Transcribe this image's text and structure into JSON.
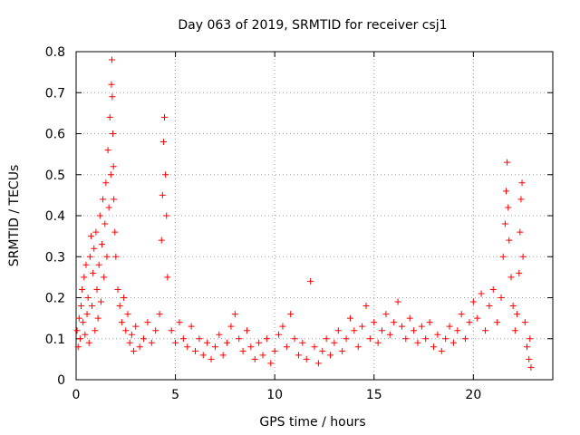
{
  "chart_data": {
    "type": "scatter",
    "title": "Day 063 of 2019, SRMTID for receiver csj1",
    "xlabel": "GPS time / hours",
    "ylabel": "SRMTID / TECUs",
    "xlim": [
      0,
      24
    ],
    "ylim": [
      0,
      0.8
    ],
    "xticks": [
      0,
      5,
      10,
      15,
      20
    ],
    "xtick_labels": [
      "0",
      "5",
      "10",
      "15",
      "20"
    ],
    "yticks": [
      0,
      0.1,
      0.2,
      0.3,
      0.4,
      0.5,
      0.6,
      0.7,
      0.8
    ],
    "ytick_labels": [
      "0",
      "0.1",
      "0.2",
      "0.3",
      "0.4",
      "0.5",
      "0.6",
      "0.7",
      "0.8"
    ],
    "grid": true,
    "marker": "+",
    "marker_color": "#ff0000",
    "series": [
      {
        "name": "csj1",
        "points": [
          [
            0.05,
            0.12
          ],
          [
            0.1,
            0.08
          ],
          [
            0.15,
            0.15
          ],
          [
            0.2,
            0.1
          ],
          [
            0.25,
            0.18
          ],
          [
            0.3,
            0.22
          ],
          [
            0.35,
            0.14
          ],
          [
            0.4,
            0.25
          ],
          [
            0.45,
            0.11
          ],
          [
            0.5,
            0.28
          ],
          [
            0.55,
            0.16
          ],
          [
            0.6,
            0.2
          ],
          [
            0.65,
            0.09
          ],
          [
            0.7,
            0.3
          ],
          [
            0.75,
            0.35
          ],
          [
            0.8,
            0.18
          ],
          [
            0.85,
            0.26
          ],
          [
            0.9,
            0.32
          ],
          [
            0.95,
            0.12
          ],
          [
            1.0,
            0.36
          ],
          [
            1.05,
            0.22
          ],
          [
            1.1,
            0.15
          ],
          [
            1.15,
            0.28
          ],
          [
            1.2,
            0.4
          ],
          [
            1.25,
            0.19
          ],
          [
            1.3,
            0.33
          ],
          [
            1.35,
            0.44
          ],
          [
            1.4,
            0.25
          ],
          [
            1.45,
            0.38
          ],
          [
            1.5,
            0.48
          ],
          [
            1.55,
            0.3
          ],
          [
            1.6,
            0.56
          ],
          [
            1.65,
            0.42
          ],
          [
            1.7,
            0.64
          ],
          [
            1.75,
            0.5
          ],
          [
            1.78,
            0.72
          ],
          [
            1.8,
            0.78
          ],
          [
            1.82,
            0.69
          ],
          [
            1.85,
            0.6
          ],
          [
            1.88,
            0.52
          ],
          [
            1.9,
            0.44
          ],
          [
            1.95,
            0.36
          ],
          [
            2.0,
            0.3
          ],
          [
            2.1,
            0.22
          ],
          [
            2.2,
            0.18
          ],
          [
            2.3,
            0.14
          ],
          [
            2.4,
            0.2
          ],
          [
            2.5,
            0.12
          ],
          [
            2.6,
            0.16
          ],
          [
            2.7,
            0.09
          ],
          [
            2.8,
            0.11
          ],
          [
            2.9,
            0.07
          ],
          [
            3.0,
            0.13
          ],
          [
            3.2,
            0.08
          ],
          [
            3.4,
            0.1
          ],
          [
            3.6,
            0.14
          ],
          [
            3.8,
            0.09
          ],
          [
            4.0,
            0.12
          ],
          [
            4.2,
            0.16
          ],
          [
            4.3,
            0.34
          ],
          [
            4.35,
            0.45
          ],
          [
            4.4,
            0.58
          ],
          [
            4.45,
            0.64
          ],
          [
            4.5,
            0.5
          ],
          [
            4.55,
            0.4
          ],
          [
            4.6,
            0.25
          ],
          [
            4.8,
            0.12
          ],
          [
            5.0,
            0.09
          ],
          [
            5.2,
            0.14
          ],
          [
            5.4,
            0.1
          ],
          [
            5.6,
            0.08
          ],
          [
            5.8,
            0.13
          ],
          [
            6.0,
            0.07
          ],
          [
            6.2,
            0.1
          ],
          [
            6.4,
            0.06
          ],
          [
            6.6,
            0.09
          ],
          [
            6.8,
            0.05
          ],
          [
            7.0,
            0.08
          ],
          [
            7.2,
            0.11
          ],
          [
            7.4,
            0.06
          ],
          [
            7.6,
            0.09
          ],
          [
            7.8,
            0.13
          ],
          [
            8.0,
            0.16
          ],
          [
            8.2,
            0.1
          ],
          [
            8.4,
            0.07
          ],
          [
            8.6,
            0.12
          ],
          [
            8.8,
            0.08
          ],
          [
            9.0,
            0.05
          ],
          [
            9.2,
            0.09
          ],
          [
            9.4,
            0.06
          ],
          [
            9.6,
            0.1
          ],
          [
            9.8,
            0.04
          ],
          [
            10.0,
            0.07
          ],
          [
            10.2,
            0.11
          ],
          [
            10.4,
            0.13
          ],
          [
            10.6,
            0.08
          ],
          [
            10.8,
            0.16
          ],
          [
            11.0,
            0.1
          ],
          [
            11.2,
            0.06
          ],
          [
            11.4,
            0.09
          ],
          [
            11.6,
            0.05
          ],
          [
            11.8,
            0.24
          ],
          [
            12.0,
            0.08
          ],
          [
            12.2,
            0.04
          ],
          [
            12.4,
            0.07
          ],
          [
            12.6,
            0.1
          ],
          [
            12.8,
            0.06
          ],
          [
            13.0,
            0.09
          ],
          [
            13.2,
            0.12
          ],
          [
            13.4,
            0.07
          ],
          [
            13.6,
            0.1
          ],
          [
            13.8,
            0.15
          ],
          [
            14.0,
            0.12
          ],
          [
            14.2,
            0.08
          ],
          [
            14.4,
            0.13
          ],
          [
            14.6,
            0.18
          ],
          [
            14.8,
            0.1
          ],
          [
            15.0,
            0.14
          ],
          [
            15.2,
            0.09
          ],
          [
            15.4,
            0.12
          ],
          [
            15.6,
            0.16
          ],
          [
            15.8,
            0.11
          ],
          [
            16.0,
            0.14
          ],
          [
            16.2,
            0.19
          ],
          [
            16.4,
            0.13
          ],
          [
            16.6,
            0.1
          ],
          [
            16.8,
            0.15
          ],
          [
            17.0,
            0.12
          ],
          [
            17.2,
            0.09
          ],
          [
            17.4,
            0.13
          ],
          [
            17.6,
            0.1
          ],
          [
            17.8,
            0.14
          ],
          [
            18.0,
            0.08
          ],
          [
            18.2,
            0.11
          ],
          [
            18.4,
            0.07
          ],
          [
            18.6,
            0.1
          ],
          [
            18.8,
            0.13
          ],
          [
            19.0,
            0.09
          ],
          [
            19.2,
            0.12
          ],
          [
            19.4,
            0.16
          ],
          [
            19.6,
            0.1
          ],
          [
            19.8,
            0.14
          ],
          [
            20.0,
            0.19
          ],
          [
            20.2,
            0.15
          ],
          [
            20.4,
            0.21
          ],
          [
            20.6,
            0.12
          ],
          [
            20.8,
            0.18
          ],
          [
            21.0,
            0.22
          ],
          [
            21.2,
            0.14
          ],
          [
            21.4,
            0.2
          ],
          [
            21.5,
            0.3
          ],
          [
            21.6,
            0.38
          ],
          [
            21.65,
            0.46
          ],
          [
            21.7,
            0.53
          ],
          [
            21.75,
            0.42
          ],
          [
            21.8,
            0.34
          ],
          [
            21.9,
            0.25
          ],
          [
            22.0,
            0.18
          ],
          [
            22.1,
            0.12
          ],
          [
            22.2,
            0.16
          ],
          [
            22.3,
            0.26
          ],
          [
            22.35,
            0.36
          ],
          [
            22.4,
            0.44
          ],
          [
            22.45,
            0.48
          ],
          [
            22.5,
            0.3
          ],
          [
            22.6,
            0.14
          ],
          [
            22.7,
            0.08
          ],
          [
            22.8,
            0.05
          ],
          [
            22.85,
            0.1
          ],
          [
            22.9,
            0.03
          ]
        ]
      }
    ]
  }
}
